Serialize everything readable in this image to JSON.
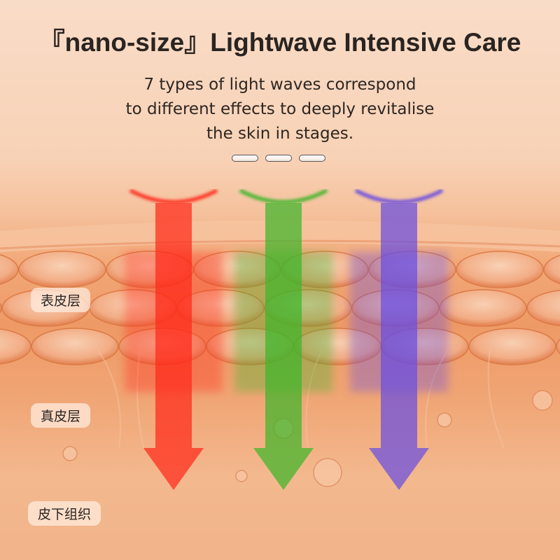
{
  "title": "『nano-size』Lightwave Intensive Care",
  "subtitle_lines": [
    "7 types of light waves correspond",
    "to different effects to deeply revitalise",
    "the skin in stages."
  ],
  "carousel_indicators": 3,
  "layers": [
    "表皮层",
    "真皮层",
    "皮下组织"
  ],
  "light_beams": [
    {
      "name": "red-beam",
      "color": "#ff2a1a"
    },
    {
      "name": "green-beam",
      "color": "#3fb52a"
    },
    {
      "name": "purple-beam",
      "color": "#6a4ee0"
    }
  ]
}
